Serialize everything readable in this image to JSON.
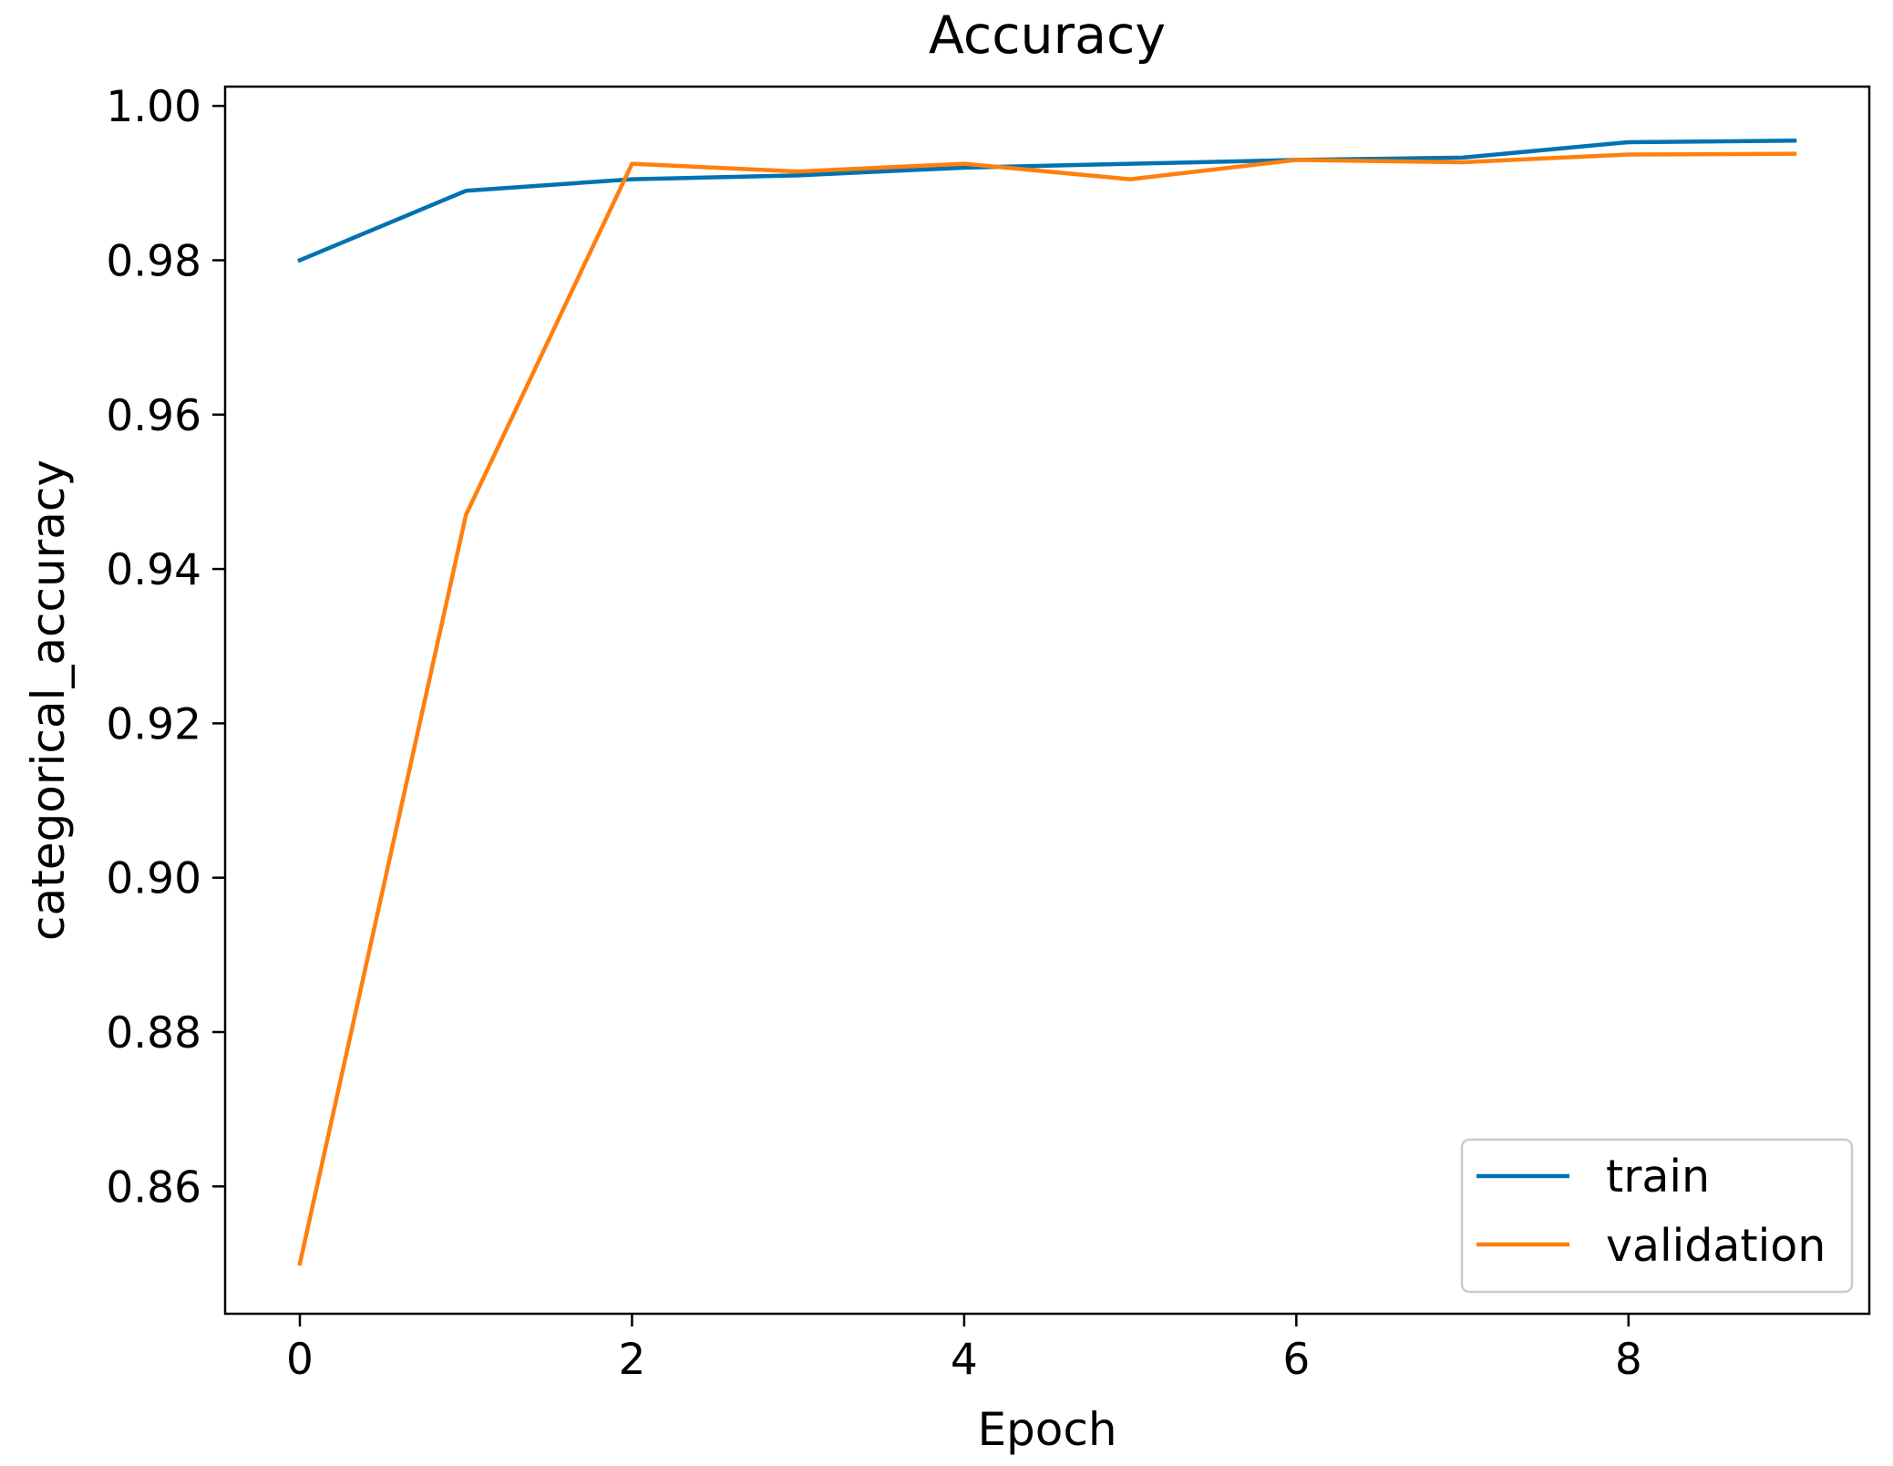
{
  "chart_data": {
    "type": "line",
    "title": "Accuracy",
    "xlabel": "Epoch",
    "ylabel": "categorical_accuracy",
    "x": [
      0,
      1,
      2,
      3,
      4,
      5,
      6,
      7,
      8,
      9
    ],
    "xlim": [
      -0.45,
      9.45
    ],
    "ylim": [
      0.8435,
      1.0025
    ],
    "xticks": [
      0,
      2,
      4,
      6,
      8
    ],
    "xtick_labels": [
      "0",
      "2",
      "4",
      "6",
      "8"
    ],
    "yticks": [
      0.86,
      0.88,
      0.9,
      0.92,
      0.94,
      0.96,
      0.98,
      1.0
    ],
    "ytick_labels": [
      "0.86",
      "0.88",
      "0.90",
      "0.92",
      "0.94",
      "0.96",
      "0.98",
      "1.00"
    ],
    "grid": false,
    "legend": "lower-right",
    "series": [
      {
        "name": "train",
        "color": "#0072B2",
        "values": [
          0.98,
          0.989,
          0.9905,
          0.991,
          0.992,
          0.9925,
          0.993,
          0.9933,
          0.9953,
          0.9955
        ]
      },
      {
        "name": "validation",
        "color": "#FF7F0E",
        "values": [
          0.85,
          0.947,
          0.9925,
          0.9915,
          0.9925,
          0.9905,
          0.993,
          0.9927,
          0.9937,
          0.9938
        ]
      }
    ]
  }
}
